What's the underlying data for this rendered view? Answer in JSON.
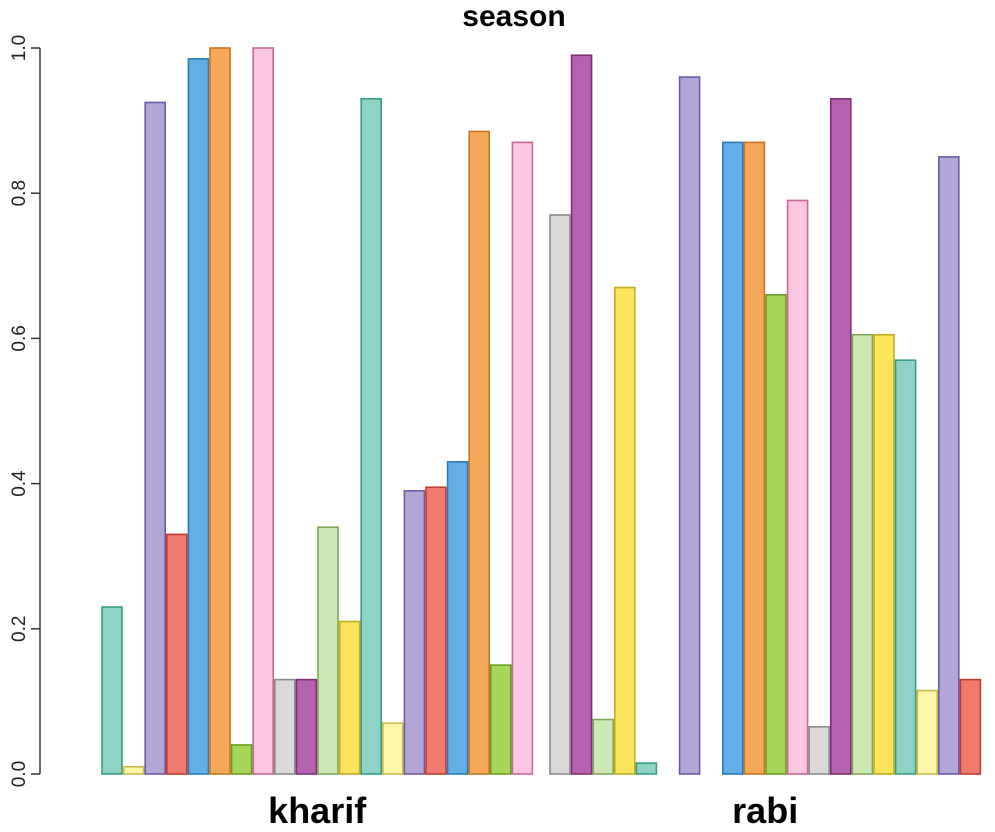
{
  "chart_data": {
    "type": "bar",
    "title": "season",
    "xlabel": "",
    "ylabel": "",
    "ylim": [
      0,
      1
    ],
    "yticks": [
      0.0,
      0.2,
      0.4,
      0.6,
      0.8,
      1.0
    ],
    "ytick_labels": [
      "0.0",
      "0.2",
      "0.4",
      "0.6",
      "0.8",
      "1.0"
    ],
    "groups": [
      {
        "name": "kharif",
        "bars": [
          {
            "value": 0.23,
            "fill": "#8fd3c5",
            "stroke": "#3a9c88"
          },
          {
            "value": 0.01,
            "fill": "#fff5a8",
            "stroke": "#c9b94a"
          },
          {
            "value": 0.925,
            "fill": "#b3a6d6",
            "stroke": "#6a5aa8"
          },
          {
            "value": 0.33,
            "fill": "#f07a6e",
            "stroke": "#c23b2f"
          },
          {
            "value": 0.985,
            "fill": "#62aee6",
            "stroke": "#2e79b8"
          },
          {
            "value": 1.0,
            "fill": "#f5a85a",
            "stroke": "#c7761f"
          },
          {
            "value": 0.04,
            "fill": "#a6d65a",
            "stroke": "#6a9c24"
          },
          {
            "value": 1.0,
            "fill": "#fbc7e0",
            "stroke": "#c76a98"
          },
          {
            "value": 0.13,
            "fill": "#d9d9d9",
            "stroke": "#8c8c8c"
          },
          {
            "value": 0.13,
            "fill": "#b662b0",
            "stroke": "#7e2f7a"
          },
          {
            "value": 0.34,
            "fill": "#cde8b4",
            "stroke": "#7ea85c"
          },
          {
            "value": 0.21,
            "fill": "#fbe55c",
            "stroke": "#c4ac1c"
          },
          {
            "value": 0.93,
            "fill": "#8fd3c5",
            "stroke": "#3a9c88"
          },
          {
            "value": 0.07,
            "fill": "#fff5a8",
            "stroke": "#c9b94a"
          },
          {
            "value": 0.39,
            "fill": "#b3a6d6",
            "stroke": "#6a5aa8"
          },
          {
            "value": 0.395,
            "fill": "#f07a6e",
            "stroke": "#c23b2f"
          },
          {
            "value": 0.43,
            "fill": "#62aee6",
            "stroke": "#2e79b8"
          },
          {
            "value": 0.885,
            "fill": "#f5a85a",
            "stroke": "#c7761f"
          },
          {
            "value": 0.15,
            "fill": "#a6d65a",
            "stroke": "#6a9c24"
          },
          {
            "value": 0.87,
            "fill": "#fbc7e0",
            "stroke": "#c76a98"
          }
        ]
      },
      {
        "name": "rabi",
        "bars": [
          {
            "value": 0.77,
            "fill": "#d9d9d9",
            "stroke": "#8c8c8c"
          },
          {
            "value": 0.99,
            "fill": "#b662b0",
            "stroke": "#7e2f7a"
          },
          {
            "value": 0.075,
            "fill": "#cde8b4",
            "stroke": "#7ea85c"
          },
          {
            "value": 0.67,
            "fill": "#fbe55c",
            "stroke": "#c4ac1c"
          },
          {
            "value": 0.015,
            "fill": "#8fd3c5",
            "stroke": "#3a9c88"
          },
          {
            "value": 0.0,
            "fill": "#fff5a8",
            "stroke": "#c9b94a"
          },
          {
            "value": 0.96,
            "fill": "#b3a6d6",
            "stroke": "#6a5aa8"
          },
          {
            "value": 0.0,
            "fill": "#f07a6e",
            "stroke": "#c23b2f"
          },
          {
            "value": 0.87,
            "fill": "#62aee6",
            "stroke": "#2e79b8"
          },
          {
            "value": 0.87,
            "fill": "#f5a85a",
            "stroke": "#c7761f"
          },
          {
            "value": 0.66,
            "fill": "#a6d65a",
            "stroke": "#6a9c24"
          },
          {
            "value": 0.79,
            "fill": "#fbc7e0",
            "stroke": "#c76a98"
          },
          {
            "value": 0.065,
            "fill": "#d9d9d9",
            "stroke": "#8c8c8c"
          },
          {
            "value": 0.93,
            "fill": "#b662b0",
            "stroke": "#7e2f7a"
          },
          {
            "value": 0.605,
            "fill": "#cde8b4",
            "stroke": "#7ea85c"
          },
          {
            "value": 0.605,
            "fill": "#fbe55c",
            "stroke": "#c4ac1c"
          },
          {
            "value": 0.57,
            "fill": "#8fd3c5",
            "stroke": "#3a9c88"
          },
          {
            "value": 0.115,
            "fill": "#fff5a8",
            "stroke": "#c9b94a"
          },
          {
            "value": 0.85,
            "fill": "#b3a6d6",
            "stroke": "#6a5aa8"
          },
          {
            "value": 0.13,
            "fill": "#f07a6e",
            "stroke": "#c23b2f"
          }
        ]
      }
    ]
  }
}
